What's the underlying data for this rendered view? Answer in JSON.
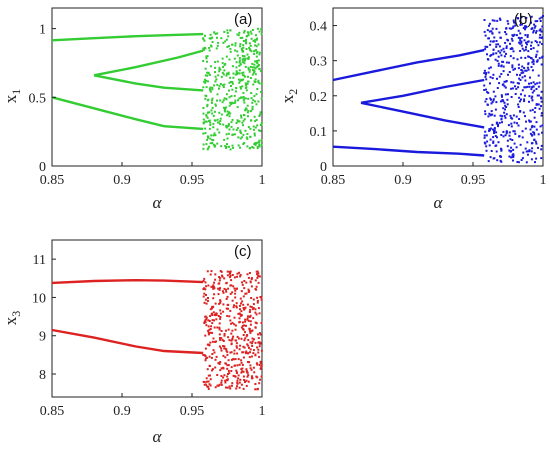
{
  "chart_data": [
    {
      "type": "scatter",
      "panel_label": "(a)",
      "xlabel": "α",
      "ylabel": "x",
      "ylabel_sub": "1",
      "xlim": [
        0.85,
        1.0
      ],
      "ylim": [
        0,
        1.15
      ],
      "xticks": [
        "0.85",
        "0.9",
        "0.95",
        "1"
      ],
      "yticks": [
        "0",
        "0.5",
        "1"
      ],
      "color": "#33cc33",
      "branches": [
        {
          "x": [
            0.85,
            0.88,
            0.91,
            0.94,
            0.958
          ],
          "y": [
            0.915,
            0.93,
            0.945,
            0.955,
            0.96
          ]
        },
        {
          "x": [
            0.88,
            0.91,
            0.94,
            0.958
          ],
          "y": [
            0.66,
            0.72,
            0.79,
            0.84
          ]
        },
        {
          "x": [
            0.85,
            0.88,
            0.91,
            0.93,
            0.958
          ],
          "y": [
            0.5,
            0.42,
            0.34,
            0.29,
            0.27
          ]
        },
        {
          "x": [
            0.88,
            0.91,
            0.93,
            0.958
          ],
          "y": [
            0.66,
            0.6,
            0.57,
            0.55
          ]
        }
      ],
      "chaos_range": [
        0.958,
        1.0
      ],
      "chaos_ylim": [
        0.12,
        1.0
      ]
    },
    {
      "type": "scatter",
      "panel_label": "(b)",
      "xlabel": "α",
      "ylabel": "x",
      "ylabel_sub": "2",
      "xlim": [
        0.85,
        1.0
      ],
      "ylim": [
        0,
        0.45
      ],
      "xticks": [
        "0.85",
        "0.9",
        "0.95",
        "1"
      ],
      "yticks": [
        "0",
        "0.1",
        "0.2",
        "0.3",
        "0.4"
      ],
      "color": "#1a1adc",
      "branches": [
        {
          "x": [
            0.85,
            0.88,
            0.91,
            0.94,
            0.958
          ],
          "y": [
            0.245,
            0.27,
            0.295,
            0.315,
            0.33
          ]
        },
        {
          "x": [
            0.87,
            0.9,
            0.93,
            0.958
          ],
          "y": [
            0.18,
            0.2,
            0.225,
            0.245
          ]
        },
        {
          "x": [
            0.87,
            0.9,
            0.93,
            0.958
          ],
          "y": [
            0.18,
            0.155,
            0.13,
            0.11
          ]
        },
        {
          "x": [
            0.85,
            0.88,
            0.91,
            0.94,
            0.958
          ],
          "y": [
            0.055,
            0.048,
            0.04,
            0.035,
            0.03
          ]
        }
      ],
      "chaos_range": [
        0.958,
        1.0
      ],
      "chaos_ylim": [
        0.01,
        0.43
      ]
    },
    {
      "type": "scatter",
      "panel_label": "(c)",
      "xlabel": "α",
      "ylabel": "x",
      "ylabel_sub": "3",
      "xlim": [
        0.85,
        1.0
      ],
      "ylim": [
        7.4,
        11.5
      ],
      "xticks": [
        "0.85",
        "0.9",
        "0.95",
        "1"
      ],
      "yticks": [
        "8",
        "9",
        "10",
        "11"
      ],
      "color": "#dd2222",
      "branches": [
        {
          "x": [
            0.85,
            0.88,
            0.91,
            0.93,
            0.958
          ],
          "y": [
            10.38,
            10.43,
            10.45,
            10.44,
            10.4
          ]
        },
        {
          "x": [
            0.85,
            0.88,
            0.91,
            0.93,
            0.958
          ],
          "y": [
            9.15,
            8.95,
            8.72,
            8.6,
            8.55
          ]
        }
      ],
      "chaos_range": [
        0.958,
        1.0
      ],
      "chaos_ylim": [
        7.6,
        10.7
      ]
    }
  ]
}
